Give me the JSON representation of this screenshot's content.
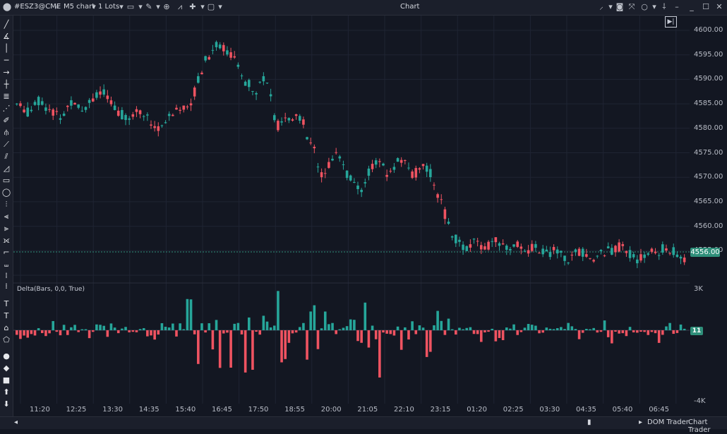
{
  "titlebar": {
    "symbol": "#ESZ3@CME",
    "chart_type": "M5 chart",
    "lots": "1 Lots",
    "window_title": "Chart"
  },
  "indicator": {
    "label": "Delta(Bars, 0,0, True)",
    "upper_value": "3K",
    "lower_value": "-4K",
    "current_value": "11"
  },
  "price_axis": {
    "ticks": [
      "4600.00",
      "4595.00",
      "4590.00",
      "4585.00",
      "4580.00",
      "4575.00",
      "4570.00",
      "4565.00",
      "4560.00",
      "4555.00"
    ],
    "current_price": "4556.00"
  },
  "time_axis": {
    "ticks": [
      "11:20",
      "12:25",
      "13:30",
      "14:35",
      "15:40",
      "16:45",
      "17:50",
      "18:55",
      "20:00",
      "21:05",
      "22:10",
      "23:15",
      "01:20",
      "02:25",
      "03:30",
      "04:35",
      "05:40",
      "06:45"
    ]
  },
  "statusbar": {
    "dom_trader": "DOM Trader",
    "chart_trader": "Chart Trader"
  },
  "colors": {
    "up": "#26a69a",
    "down": "#ef5361",
    "background": "#131722",
    "current_price_line": "#2f8f7a"
  },
  "chart_data": {
    "type": "candlestick",
    "y_range": [
      4550,
      4602
    ],
    "price_path": [
      4585,
      4584,
      4583,
      4586,
      4585,
      4584,
      4583,
      4582,
      4585,
      4586,
      4584,
      4585,
      4587,
      4588,
      4586,
      4584,
      4583,
      4582,
      4583,
      4584,
      4582,
      4581,
      4580,
      4581,
      4583,
      4584,
      4585,
      4586,
      4590,
      4594,
      4596,
      4598,
      4597,
      4596,
      4593,
      4590,
      4589,
      4588,
      4591,
      4588,
      4580,
      4582,
      4581,
      4583,
      4582,
      4577,
      4575,
      4570,
      4572,
      4575,
      4574,
      4570,
      4568,
      4566,
      4570,
      4572,
      4573,
      4570,
      4571,
      4574,
      4572,
      4570,
      4571,
      4572,
      4570,
      4566,
      4562,
      4558,
      4556,
      4554,
      4555,
      4556,
      4555,
      4555,
      4556,
      4555,
      4554,
      4556,
      4555,
      4554,
      4555,
      4554,
      4553,
      4554,
      4553,
      4552,
      4553,
      4554,
      4553,
      4552,
      4553,
      4554,
      4554,
      4555,
      4554,
      4553,
      4552,
      4553,
      4554,
      4553,
      4555,
      4554,
      4553,
      4552
    ]
  }
}
